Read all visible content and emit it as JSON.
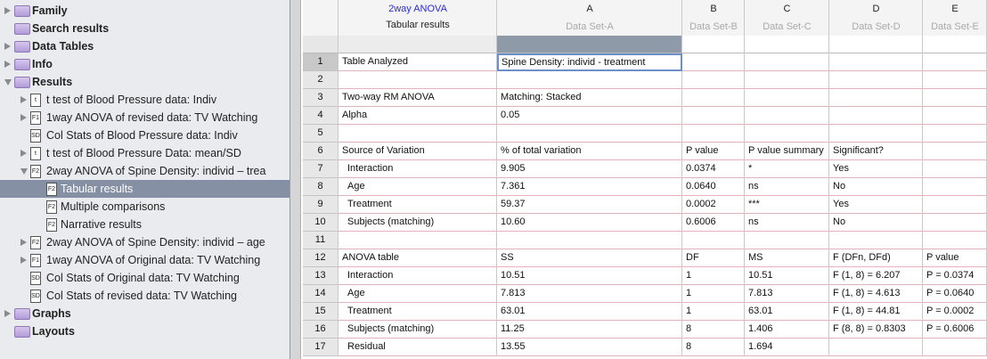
{
  "sidebar": {
    "items": [
      {
        "label": "Family",
        "level": 0,
        "icon": "folder",
        "arrow": "collapsed"
      },
      {
        "label": "Search results",
        "level": 0,
        "icon": "folder"
      },
      {
        "label": "Data Tables",
        "level": 0,
        "icon": "folder",
        "arrow": "collapsed"
      },
      {
        "label": "Info",
        "level": 0,
        "icon": "folder",
        "arrow": "collapsed"
      },
      {
        "label": "Results",
        "level": 0,
        "icon": "folder",
        "arrow": "expanded"
      },
      {
        "label": "t test of Blood Pressure data: Indiv",
        "level": 1,
        "icon": "t",
        "arrow": "collapsed"
      },
      {
        "label": "1way ANOVA of revised data: TV Watching",
        "level": 1,
        "icon": "F1",
        "arrow": "collapsed"
      },
      {
        "label": "Col Stats of Blood Pressure data: Indiv",
        "level": 1,
        "icon": "SD"
      },
      {
        "label": "t test of Blood Pressure Data: mean/SD",
        "level": 1,
        "icon": "t",
        "arrow": "collapsed"
      },
      {
        "label": "2way ANOVA of Spine Density: individ – trea",
        "level": 1,
        "icon": "F2",
        "arrow": "expanded"
      },
      {
        "label": "Tabular results",
        "level": 2,
        "icon": "F2",
        "selected": true
      },
      {
        "label": "Multiple comparisons",
        "level": 2,
        "icon": "F2"
      },
      {
        "label": "Narrative results",
        "level": 2,
        "icon": "F2"
      },
      {
        "label": "2way ANOVA of Spine Density: individ – age",
        "level": 1,
        "icon": "F2",
        "arrow": "collapsed"
      },
      {
        "label": "1way ANOVA of Original data: TV Watching",
        "level": 1,
        "icon": "F1",
        "arrow": "collapsed"
      },
      {
        "label": "Col Stats of Original data: TV Watching",
        "level": 1,
        "icon": "SD"
      },
      {
        "label": "Col Stats of revised data: TV Watching",
        "level": 1,
        "icon": "SD"
      },
      {
        "label": "Graphs",
        "level": 0,
        "icon": "folder",
        "arrow": "collapsed"
      },
      {
        "label": "Layouts",
        "level": 0,
        "icon": "folder"
      }
    ]
  },
  "sheet": {
    "corner": {
      "title": "2way ANOVA",
      "subtitle": "Tabular results"
    },
    "columns": [
      {
        "letter": "A",
        "name": "Data Set-A"
      },
      {
        "letter": "B",
        "name": "Data Set-B"
      },
      {
        "letter": "C",
        "name": "Data Set-C"
      },
      {
        "letter": "D",
        "name": "Data Set-D"
      },
      {
        "letter": "E",
        "name": "Data Set-E"
      }
    ],
    "rows": [
      {
        "number": 1,
        "cells": [
          "Table Analyzed",
          "Spine Density: individ - treatment"
        ],
        "selected": 1
      },
      {
        "number": 2,
        "cells": []
      },
      {
        "number": 3,
        "cells": [
          "Two-way RM ANOVA",
          "Matching: Stacked"
        ]
      },
      {
        "number": 4,
        "cells": [
          "Alpha",
          "0.05"
        ]
      },
      {
        "number": 5,
        "cells": []
      },
      {
        "number": 6,
        "cells": [
          "Source of Variation",
          "% of total variation",
          "P value",
          "P value summary",
          "Significant?"
        ]
      },
      {
        "number": 7,
        "cells": [
          "Interaction",
          "9.905",
          "0.0374",
          "*",
          "Yes"
        ],
        "indent": true
      },
      {
        "number": 8,
        "cells": [
          "Age",
          "7.361",
          "0.0640",
          "ns",
          "No"
        ],
        "indent": true
      },
      {
        "number": 9,
        "cells": [
          "Treatment",
          "59.37",
          "0.0002",
          "***",
          "Yes"
        ],
        "indent": true
      },
      {
        "number": 10,
        "cells": [
          "Subjects (matching)",
          "10.60",
          "0.6006",
          "ns",
          "No"
        ],
        "indent": true
      },
      {
        "number": 11,
        "cells": []
      },
      {
        "number": 12,
        "cells": [
          "ANOVA table",
          "SS",
          "DF",
          "MS",
          "F (DFn, DFd)",
          "P value"
        ]
      },
      {
        "number": 13,
        "cells": [
          "Interaction",
          "10.51",
          "1",
          "10.51",
          "F (1, 8) = 6.207",
          "P = 0.0374"
        ],
        "indent": true
      },
      {
        "number": 14,
        "cells": [
          "Age",
          "7.813",
          "1",
          "7.813",
          "F (1, 8) = 4.613",
          "P = 0.0640"
        ],
        "indent": true
      },
      {
        "number": 15,
        "cells": [
          "Treatment",
          "63.01",
          "1",
          "63.01",
          "F (1, 8) = 44.81",
          "P = 0.0002"
        ],
        "indent": true
      },
      {
        "number": 16,
        "cells": [
          "Subjects (matching)",
          "11.25",
          "8",
          "1.406",
          "F (8, 8) = 0.8303",
          "P = 0.6006"
        ],
        "indent": true
      },
      {
        "number": 17,
        "cells": [
          "Residual",
          "13.55",
          "8",
          "1.694"
        ],
        "indent": true
      }
    ]
  }
}
